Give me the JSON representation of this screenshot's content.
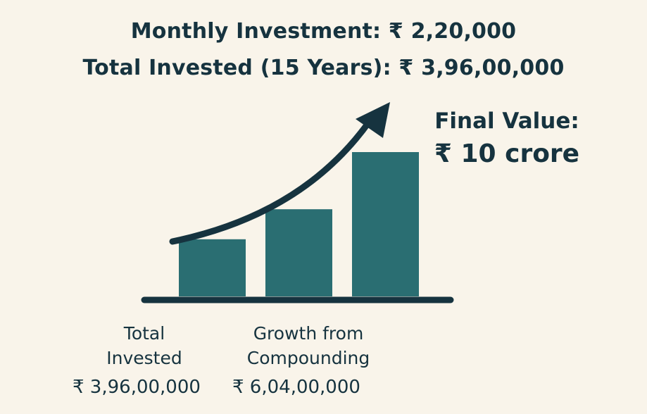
{
  "header": {
    "line1": "Monthly Investment: ₹ 2,20,000",
    "line2": "Total Invested (15 Years): ₹ 3,96,00,000"
  },
  "final": {
    "title": "Final Value:",
    "value": "₹ 10 crore"
  },
  "labels": {
    "total_line1": "Total",
    "total_line2": "Invested",
    "total_value": "₹ 3,96,00,000",
    "growth_line1": "Growth from",
    "growth_line2": "Compounding",
    "growth_value": "₹ 6,04,00,000"
  },
  "colors": {
    "background": "#f9f4ea",
    "bar": "#2a6e72",
    "text": "#16333f",
    "arrow": "#16333f",
    "baseline": "#16333f"
  },
  "chart_data": {
    "type": "bar",
    "categories": [
      "Total Invested",
      "Growth from Compounding",
      "Final Value"
    ],
    "values": [
      3.96,
      6.04,
      10.0
    ],
    "unit": "crore",
    "title": "",
    "xlabel": "",
    "ylabel": "",
    "ylim": [
      0,
      12
    ],
    "grid": false,
    "trend_arrow": true
  }
}
